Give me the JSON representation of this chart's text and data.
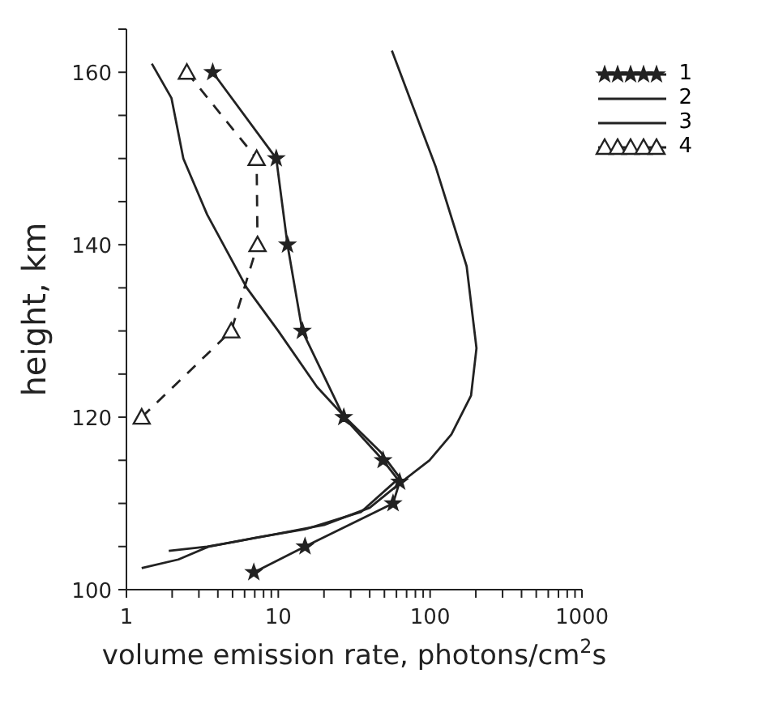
{
  "chart_data": {
    "type": "line",
    "xlabel": "volume emission rate, photons/cm$^{2}$s",
    "ylabel": "height, km",
    "log": "x",
    "xlim": [
      1,
      1000
    ],
    "ylim": [
      100,
      165
    ],
    "xticks": [
      1,
      {
        "value": 2,
        "label": null
      },
      {
        "value": 3,
        "label": null
      },
      {
        "value": 4,
        "label": null
      },
      {
        "value": 5,
        "label": null
      },
      {
        "value": 6,
        "label": null
      },
      {
        "value": 7,
        "label": null
      },
      {
        "value": 8,
        "label": null
      },
      {
        "value": 9,
        "label": null
      },
      10,
      {
        "value": 20,
        "label": null
      },
      {
        "value": 30,
        "label": null
      },
      {
        "value": 40,
        "label": null
      },
      {
        "value": 50,
        "label": null
      },
      {
        "value": 60,
        "label": null
      },
      {
        "value": 70,
        "label": null
      },
      {
        "value": 80,
        "label": null
      },
      {
        "value": 90,
        "label": null
      },
      100,
      {
        "value": 200,
        "label": null
      },
      {
        "value": 300,
        "label": null
      },
      {
        "value": 400,
        "label": null
      },
      {
        "value": 500,
        "label": null
      },
      {
        "value": 600,
        "label": null
      },
      {
        "value": 700,
        "label": null
      },
      {
        "value": 800,
        "label": null
      },
      {
        "value": 900,
        "label": null
      },
      1000
    ],
    "yticks": [
      100,
      {
        "value": 105,
        "label": null
      },
      {
        "value": 110,
        "label": null
      },
      {
        "value": 115,
        "label": null
      },
      120,
      {
        "value": 125,
        "label": null
      },
      {
        "value": 130,
        "label": null
      },
      {
        "value": 135,
        "label": null
      },
      140,
      {
        "value": 145,
        "label": null
      },
      {
        "value": 150,
        "label": null
      },
      {
        "value": 155,
        "label": null
      },
      160,
      {
        "value": 165,
        "label": null
      }
    ],
    "legend": "top right",
    "series": [
      {
        "name": "1",
        "color": "#222222",
        "marker": "star",
        "line_style": "solid",
        "x": [
          3.7,
          9.7,
          11.5,
          14.4,
          27,
          49,
          63,
          57,
          15,
          6.9
        ],
        "values": [
          160,
          150,
          140,
          130,
          120,
          115,
          112.5,
          110,
          105,
          102
        ]
      },
      {
        "name": "2",
        "color": "#222222",
        "marker": "none",
        "line_style": "solid",
        "x": [
          1.47,
          1.98,
          2.37,
          3.4,
          6.2,
          10,
          18,
          27.5,
          47,
          63,
          35,
          15,
          7,
          3.5,
          2.2,
          1.26
        ],
        "values": [
          161,
          157,
          150,
          143.5,
          135,
          130,
          123.5,
          120,
          116,
          113,
          109,
          107,
          106,
          105,
          103.5,
          102.5
        ]
      },
      {
        "name": "3",
        "color": "#222222",
        "marker": "none",
        "line_style": "solid",
        "x": [
          56,
          109,
          174,
          202,
          186,
          138,
          99,
          65,
          40,
          20,
          10,
          5,
          3.4,
          1.9
        ],
        "values": [
          162.5,
          149,
          137.5,
          128,
          122.5,
          118,
          115,
          112.5,
          109.5,
          107.5,
          106.5,
          105.5,
          105,
          104.5
        ]
      },
      {
        "name": "4",
        "color": "#222222",
        "marker": "triangle",
        "line_style": "dashed",
        "x": [
          2.5,
          7.2,
          7.3,
          4.9,
          1.26
        ],
        "values": [
          160,
          150,
          140,
          130,
          120
        ]
      }
    ]
  }
}
